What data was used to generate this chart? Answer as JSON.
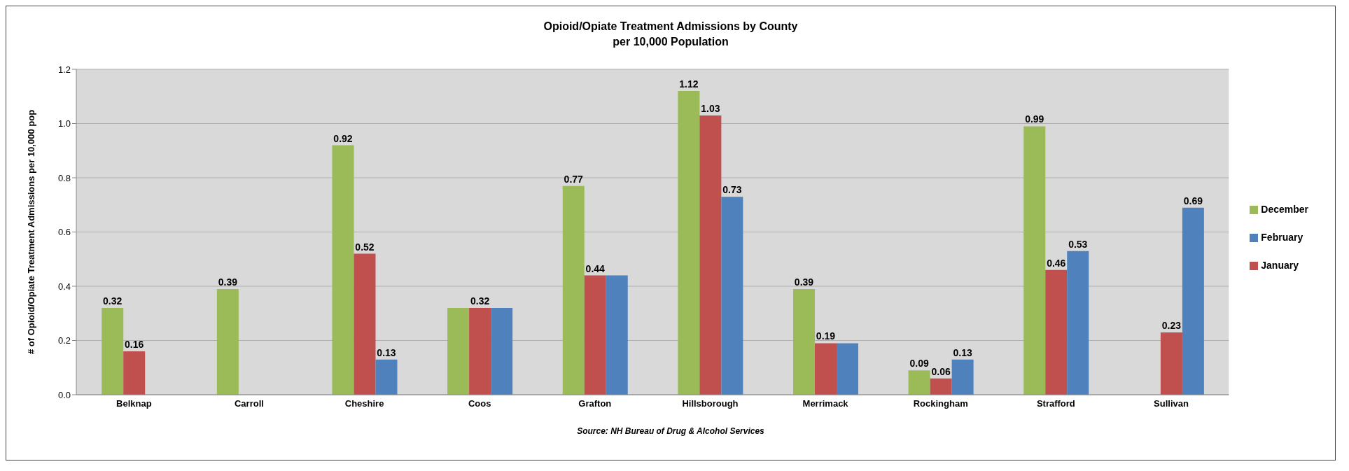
{
  "chart_data": {
    "type": "bar",
    "title": "Opioid/Opiate Treatment Admissions by County",
    "subtitle": "per 10,000 Population",
    "ylabel": "# of Opioid/Opiate Treatment Admissions per 10,000 pop",
    "annotations": [
      "Source: NH Bureau of Drug & Alcohol Services"
    ],
    "categories": [
      "Belknap",
      "Carroll",
      "Cheshire",
      "Coos",
      "Grafton",
      "Hillsborough",
      "Merrimack",
      "Rockingham",
      "Strafford",
      "Sullivan"
    ],
    "series": [
      {
        "name": "December",
        "color": "#9bbb59",
        "values": [
          0.32,
          0.39,
          0.92,
          0.32,
          0.77,
          1.12,
          0.39,
          0.09,
          0.99,
          null
        ],
        "value_labels": [
          "0.32",
          "0.39",
          "0.92",
          null,
          "0.77",
          "1.12",
          "0.39",
          "0.09",
          "0.99",
          null
        ]
      },
      {
        "name": "January",
        "color": "#c0504d",
        "values": [
          0.16,
          null,
          0.52,
          0.32,
          0.44,
          1.03,
          0.19,
          0.06,
          0.46,
          0.23
        ],
        "value_labels": [
          "0.16",
          null,
          "0.52",
          "0.32",
          "0.44",
          "1.03",
          "0.19",
          "0.06",
          "0.46",
          "0.23"
        ]
      },
      {
        "name": "February",
        "color": "#4f81bd",
        "values": [
          null,
          null,
          0.13,
          0.32,
          0.44,
          0.73,
          0.19,
          0.13,
          0.53,
          0.69
        ],
        "value_labels": [
          null,
          null,
          "0.13",
          null,
          null,
          "0.73",
          null,
          "0.13",
          "0.53",
          "0.69"
        ]
      }
    ],
    "ylim": [
      0,
      1.2
    ],
    "yticks": [
      {
        "value": 0,
        "label": "0.0"
      },
      {
        "value": 0.2,
        "label": "0.2"
      },
      {
        "value": 0.4,
        "label": "0.4"
      },
      {
        "value": 0.6,
        "label": "0.6"
      },
      {
        "value": 0.8,
        "label": "0.8"
      },
      {
        "value": 1,
        "label": "1.0"
      },
      {
        "value": 1.2,
        "label": "1.2"
      }
    ],
    "grid": "y",
    "legend": "right"
  }
}
